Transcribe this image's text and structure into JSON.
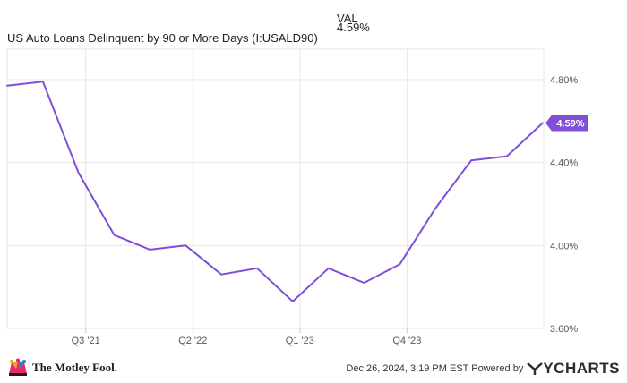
{
  "header": {
    "val_label": "VAL",
    "series_name": "US Auto Loans Delinquent by 90 or More Days (I:USALD90)",
    "last_value_text": "4.59%"
  },
  "chart_data": {
    "type": "line",
    "title": "US Auto Loans Delinquent by 90 or More Days (I:USALD90)",
    "xlabel": "",
    "ylabel": "",
    "x": [
      "2020-12-31",
      "2021-03-31",
      "2021-06-30",
      "2021-09-30",
      "2021-12-31",
      "2022-03-31",
      "2022-06-30",
      "2022-09-30",
      "2022-12-31",
      "2023-03-31",
      "2023-06-30",
      "2023-09-30",
      "2023-12-31",
      "2024-03-31",
      "2024-06-30",
      "2024-09-30"
    ],
    "series": [
      {
        "name": "US Auto Loans Delinquent by 90 or More Days (I:USALD90)",
        "values": [
          4.77,
          4.79,
          4.35,
          4.05,
          3.98,
          4.0,
          3.86,
          3.89,
          3.73,
          3.89,
          3.82,
          3.91,
          4.18,
          4.41,
          4.43,
          4.59
        ],
        "color": "#7f4fd9"
      }
    ],
    "x_tick_labels": [
      "Q3 '21",
      "Q2 '22",
      "Q1 '23",
      "Q4 '23"
    ],
    "x_tick_index": [
      2.2,
      5.2,
      8.2,
      11.2
    ],
    "y_ticks": [
      3.6,
      4.0,
      4.4,
      4.8
    ],
    "y_tick_labels": [
      "3.60%",
      "4.00%",
      "4.40%",
      "4.80%"
    ],
    "ylim": [
      3.6,
      5.0
    ],
    "last_value_label": "4.59%",
    "grid": true,
    "legend": "top-left"
  },
  "footer": {
    "source_text": "Dec 26, 2024, 3:19 PM EST Powered by",
    "ycharts_brand": "YCHARTS",
    "motley_fool_text": "The Motley Fool."
  },
  "colors": {
    "line": "#7f4fd9",
    "grid": "#e6e6e6",
    "axis_text": "#555555"
  }
}
